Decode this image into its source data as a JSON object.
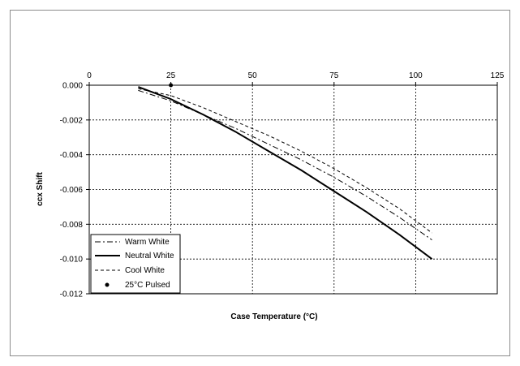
{
  "chart_data": {
    "type": "line",
    "title": "",
    "xlabel": "Case Temperature (°C)",
    "ylabel": "ccx Shift",
    "xlim": [
      0,
      125
    ],
    "ylim": [
      -0.012,
      0.0
    ],
    "x_ticks": [
      "0",
      "25",
      "50",
      "75",
      "100",
      "125"
    ],
    "y_ticks": [
      "0.000",
      "-0.002",
      "-0.004",
      "-0.006",
      "-0.008",
      "-0.010",
      "-0.012"
    ],
    "x_axis_position": "top",
    "grid": true,
    "legend_position": "bottom-left",
    "series": [
      {
        "name": "Warm White",
        "style": "dash-dot",
        "color": "#000000",
        "x": [
          15,
          25,
          35,
          45,
          55,
          65,
          75,
          85,
          95,
          105
        ],
        "y": [
          -0.0003,
          -0.0009,
          -0.0017,
          -0.0025,
          -0.0034,
          -0.0043,
          -0.0053,
          -0.0064,
          -0.0076,
          -0.0089
        ]
      },
      {
        "name": "Neutral White",
        "style": "solid",
        "color": "#000000",
        "x": [
          15,
          25,
          35,
          45,
          55,
          65,
          75,
          85,
          95,
          105
        ],
        "y": [
          -0.0001,
          -0.0008,
          -0.0017,
          -0.0027,
          -0.0038,
          -0.0049,
          -0.0061,
          -0.0073,
          -0.0086,
          -0.01
        ]
      },
      {
        "name": "Cool White",
        "style": "dashed",
        "color": "#000000",
        "x": [
          15,
          25,
          35,
          45,
          55,
          65,
          75,
          85,
          95,
          105
        ],
        "y": [
          -0.0002,
          -0.0006,
          -0.0013,
          -0.0021,
          -0.0029,
          -0.0038,
          -0.0048,
          -0.0059,
          -0.0071,
          -0.0085
        ]
      },
      {
        "name": "25°C Pulsed",
        "style": "marker",
        "color": "#000000",
        "x": [
          25
        ],
        "y": [
          0.0
        ]
      }
    ]
  }
}
